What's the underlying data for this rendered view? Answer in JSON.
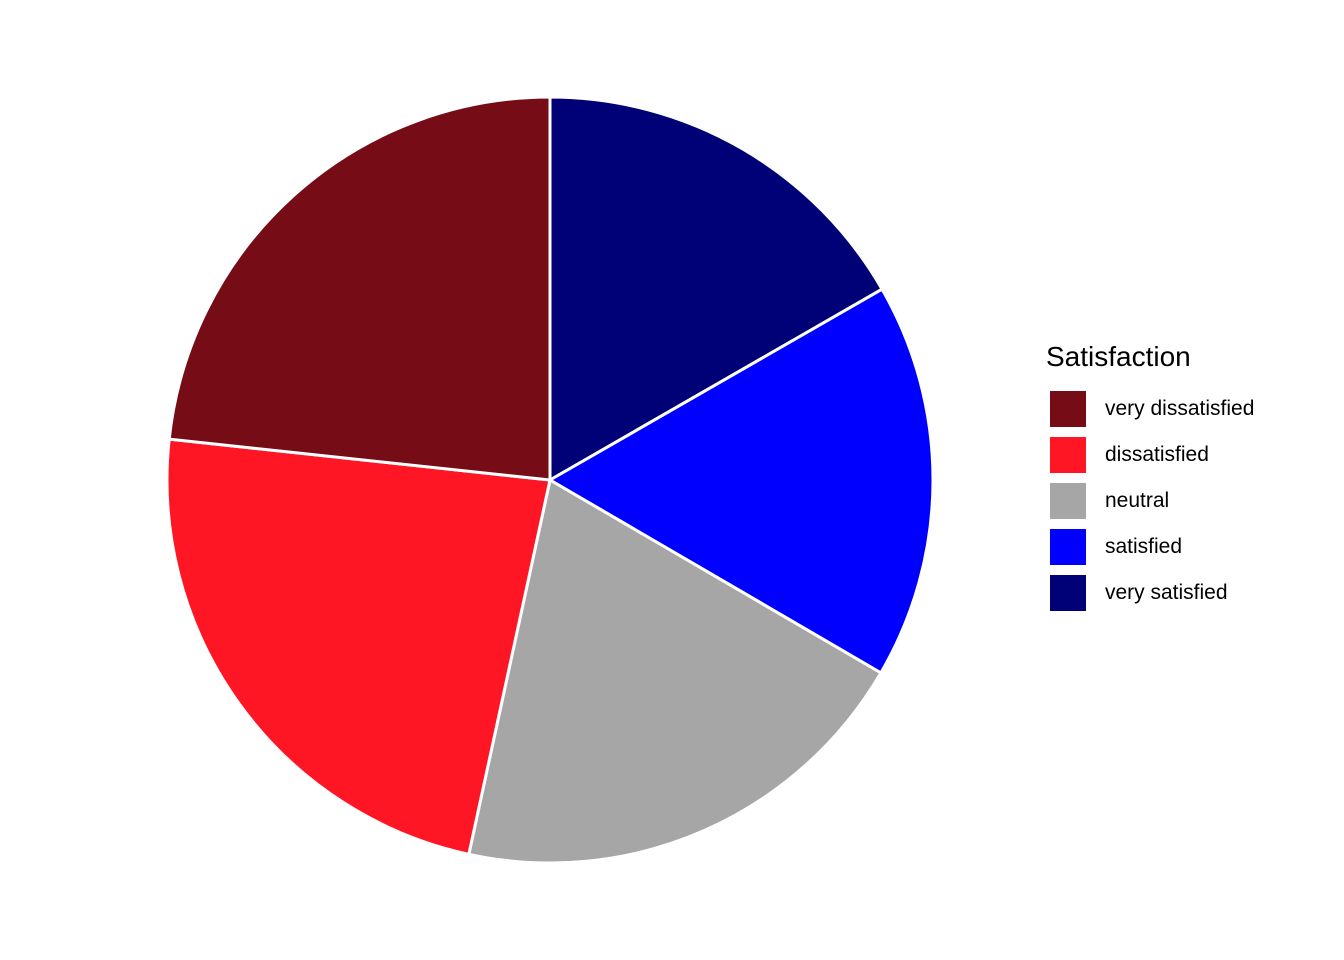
{
  "chart_data": {
    "type": "pie",
    "legend_title": "Satisfaction",
    "legend_position": "right",
    "slices": [
      {
        "label": "very dissatisfied",
        "value": 23.3,
        "color": "#760D16"
      },
      {
        "label": "dissatisfied",
        "value": 23.3,
        "color": "#FE1625"
      },
      {
        "label": "neutral",
        "value": 20.0,
        "color": "#A6A6A6"
      },
      {
        "label": "satisfied",
        "value": 16.7,
        "color": "#0000FE"
      },
      {
        "label": "very satisfied",
        "value": 16.7,
        "color": "#000077"
      }
    ]
  }
}
